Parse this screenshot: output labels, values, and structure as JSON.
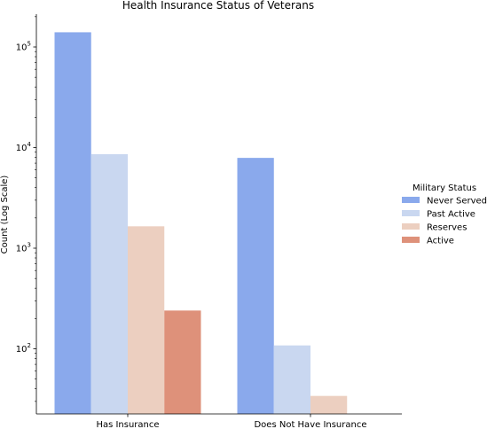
{
  "chart_data": {
    "type": "bar",
    "title": "Health Insurance Status of Veterans",
    "xlabel": "",
    "ylabel": "Count (Log Scale)",
    "y_scale": "log",
    "ylim": [
      22,
      200000
    ],
    "y_ticks": [
      100,
      1000,
      10000,
      100000
    ],
    "y_tick_labels": [
      {
        "base": "10",
        "exp": "2"
      },
      {
        "base": "10",
        "exp": "3"
      },
      {
        "base": "10",
        "exp": "4"
      },
      {
        "base": "10",
        "exp": "5"
      }
    ],
    "categories": [
      "Has Insurance",
      "Does Not Have Insurance"
    ],
    "series": [
      {
        "name": "Never Served",
        "color": "#8aa9ec",
        "values": [
          140000,
          7900
        ]
      },
      {
        "name": "Past Active",
        "color": "#c9d7f0",
        "values": [
          8600,
          108
        ]
      },
      {
        "name": "Reserves",
        "color": "#eccfc0",
        "values": [
          1650,
          34
        ]
      },
      {
        "name": "Active",
        "color": "#de917a",
        "values": [
          240,
          null
        ]
      }
    ],
    "legend": {
      "title": "Military Status",
      "placement": "right"
    },
    "grid": false
  }
}
